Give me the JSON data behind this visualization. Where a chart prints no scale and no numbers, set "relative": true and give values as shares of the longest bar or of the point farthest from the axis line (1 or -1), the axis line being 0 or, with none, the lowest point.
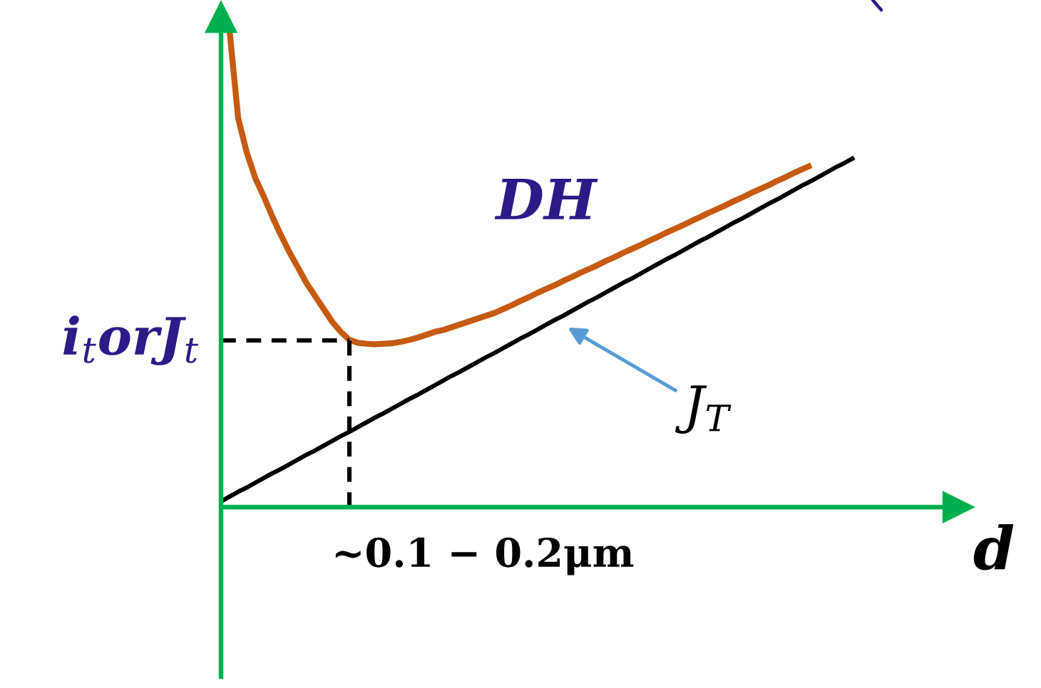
{
  "chart_data": {
    "type": "line",
    "relative": true,
    "xlabel": "d",
    "categories": [
      null,
      null,
      null,
      null,
      null,
      null,
      null,
      null,
      null,
      null,
      null,
      null,
      null,
      null,
      null,
      null,
      null,
      null,
      null,
      null,
      null,
      null,
      null,
      null,
      null,
      null,
      null,
      null,
      null,
      null,
      null,
      null,
      null,
      null,
      null,
      null,
      null,
      null,
      null,
      null,
      null,
      null,
      null,
      null,
      null,
      null,
      null,
      null,
      null,
      null,
      null,
      null,
      null,
      null,
      null,
      null,
      null,
      null,
      null,
      null,
      null,
      null,
      null,
      null,
      null,
      null,
      null,
      null,
      null,
      null,
      null,
      null,
      null,
      null,
      null
    ],
    "series": [
      {
        "name": "DH",
        "color": "#c55a11",
        "values": [
          null,
          1.0,
          0.817,
          0.745,
          0.691,
          0.652,
          0.61,
          0.571,
          0.535,
          0.503,
          0.47,
          0.443,
          0.416,
          0.389,
          0.368,
          0.351,
          0.345,
          0.343,
          0.342,
          0.343,
          0.344,
          0.347,
          0.351,
          0.356,
          0.362,
          0.368,
          0.372,
          0.378,
          0.384,
          0.39,
          0.396,
          0.402,
          0.408,
          0.416,
          0.424,
          0.433,
          0.441,
          0.45,
          0.458,
          0.466,
          0.475,
          0.483,
          0.492,
          0.5,
          0.508,
          0.517,
          0.525,
          0.534,
          0.542,
          0.55,
          0.559,
          0.567,
          0.576,
          0.584,
          0.592,
          0.601,
          0.609,
          0.618,
          0.626,
          0.634,
          0.643,
          0.651,
          0.66,
          0.668,
          0.676,
          0.685,
          0.693,
          0.702,
          0.71,
          0.718,
          null,
          null,
          null,
          null,
          null
        ]
      },
      {
        "name": "J$_{T}$",
        "color": "#000000",
        "values": [
          0.012,
          0.022,
          0.032,
          0.041,
          0.051,
          0.061,
          0.071,
          0.08,
          0.09,
          0.1,
          0.11,
          0.119,
          0.129,
          0.139,
          0.149,
          0.158,
          0.168,
          0.178,
          0.188,
          0.197,
          0.207,
          0.217,
          0.227,
          0.236,
          0.246,
          0.256,
          0.266,
          0.276,
          0.285,
          0.295,
          0.305,
          0.315,
          0.324,
          0.334,
          0.344,
          0.354,
          0.363,
          0.373,
          0.383,
          0.393,
          0.402,
          0.412,
          0.422,
          0.432,
          0.441,
          0.451,
          0.461,
          0.471,
          0.48,
          0.49,
          0.5,
          0.51,
          0.52,
          0.529,
          0.539,
          0.549,
          0.559,
          0.568,
          0.578,
          0.588,
          0.598,
          0.607,
          0.617,
          0.627,
          0.637,
          0.646,
          0.656,
          0.666,
          0.676,
          0.685,
          0.695,
          0.705,
          0.715,
          0.724,
          0.734
        ]
      }
    ],
    "ref_lines": [
      {
        "axis": "y",
        "value": 0.35,
        "label": "i$_{t}$orJ$_{t}$",
        "line_style": "dashed"
      }
    ],
    "annotations": [
      "~0.1 − 0.2μm"
    ]
  }
}
